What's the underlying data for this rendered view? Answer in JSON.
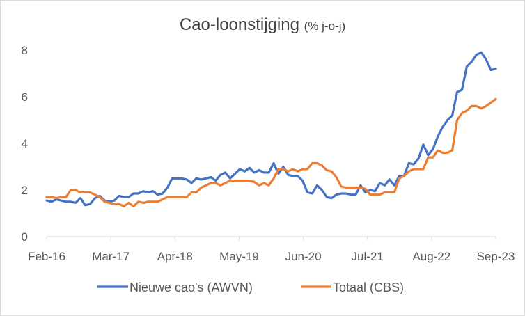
{
  "chart_data": {
    "type": "line",
    "title": "Cao-loonstijging",
    "title_suffix": "(% j-o-j)",
    "xlabel": "",
    "ylabel": "",
    "ylim": [
      0,
      8
    ],
    "yticks": [
      "0",
      "2",
      "4",
      "6",
      "8"
    ],
    "xtick_labels": [
      "Feb-16",
      "Mar-17",
      "Apr-18",
      "May-19",
      "Jun-20",
      "Jul-21",
      "Aug-22",
      "Sep-23"
    ],
    "grid": false,
    "legend_position": "bottom",
    "x_unit": "month index from Feb-16",
    "series": [
      {
        "name": "Nieuwe cao's (AWVN)",
        "color": "#4472C4",
        "values": [
          [
            0,
            1.55
          ],
          [
            1,
            1.5
          ],
          [
            2,
            1.6
          ],
          [
            3,
            1.55
          ],
          [
            4,
            1.5
          ],
          [
            5,
            1.5
          ],
          [
            6,
            1.45
          ],
          [
            7,
            1.65
          ],
          [
            8,
            1.35
          ],
          [
            9,
            1.4
          ],
          [
            10,
            1.65
          ],
          [
            11,
            1.75
          ],
          [
            12,
            1.55
          ],
          [
            13,
            1.5
          ],
          [
            14,
            1.55
          ],
          [
            15,
            1.75
          ],
          [
            16,
            1.7
          ],
          [
            17,
            1.7
          ],
          [
            18,
            1.85
          ],
          [
            19,
            1.85
          ],
          [
            20,
            1.95
          ],
          [
            21,
            1.9
          ],
          [
            22,
            1.95
          ],
          [
            23,
            1.8
          ],
          [
            24,
            1.85
          ],
          [
            25,
            2.1
          ],
          [
            26,
            2.5
          ],
          [
            27,
            2.5
          ],
          [
            28,
            2.5
          ],
          [
            29,
            2.45
          ],
          [
            30,
            2.3
          ],
          [
            31,
            2.5
          ],
          [
            32,
            2.45
          ],
          [
            33,
            2.5
          ],
          [
            34,
            2.55
          ],
          [
            35,
            2.4
          ],
          [
            36,
            2.65
          ],
          [
            37,
            2.75
          ],
          [
            38,
            2.5
          ],
          [
            39,
            2.7
          ],
          [
            40,
            2.9
          ],
          [
            41,
            2.8
          ],
          [
            42,
            2.95
          ],
          [
            43,
            2.75
          ],
          [
            44,
            2.85
          ],
          [
            45,
            2.75
          ],
          [
            46,
            2.75
          ],
          [
            47,
            3.15
          ],
          [
            48,
            2.7
          ],
          [
            49,
            3.0
          ],
          [
            50,
            2.65
          ],
          [
            51,
            2.6
          ],
          [
            52,
            2.6
          ],
          [
            53,
            2.4
          ],
          [
            54,
            1.9
          ],
          [
            55,
            1.85
          ],
          [
            56,
            2.2
          ],
          [
            57,
            2.0
          ],
          [
            58,
            1.7
          ],
          [
            59,
            1.65
          ],
          [
            60,
            1.8
          ],
          [
            61,
            1.85
          ],
          [
            62,
            1.85
          ],
          [
            63,
            1.8
          ],
          [
            64,
            1.8
          ],
          [
            65,
            2.2
          ],
          [
            66,
            1.9
          ],
          [
            67,
            2.0
          ],
          [
            68,
            1.95
          ],
          [
            69,
            2.3
          ],
          [
            70,
            2.2
          ],
          [
            71,
            2.45
          ],
          [
            72,
            2.2
          ],
          [
            73,
            2.6
          ],
          [
            74,
            2.6
          ],
          [
            75,
            3.15
          ],
          [
            76,
            3.1
          ],
          [
            77,
            3.35
          ],
          [
            78,
            3.95
          ],
          [
            79,
            3.5
          ],
          [
            80,
            3.75
          ],
          [
            81,
            4.3
          ],
          [
            82,
            4.7
          ],
          [
            83,
            5.0
          ],
          [
            84,
            5.2
          ],
          [
            85,
            6.2
          ],
          [
            86,
            6.3
          ],
          [
            87,
            7.3
          ],
          [
            88,
            7.5
          ],
          [
            89,
            7.8
          ],
          [
            90,
            7.9
          ],
          [
            91,
            7.6
          ],
          [
            92,
            7.15
          ],
          [
            93,
            7.2
          ]
        ]
      },
      {
        "name": "Totaal (CBS)",
        "color": "#ED7D31",
        "values": [
          [
            0,
            1.7
          ],
          [
            1,
            1.7
          ],
          [
            2,
            1.65
          ],
          [
            3,
            1.7
          ],
          [
            4,
            1.7
          ],
          [
            5,
            2.0
          ],
          [
            6,
            2.0
          ],
          [
            7,
            1.9
          ],
          [
            8,
            1.9
          ],
          [
            9,
            1.9
          ],
          [
            10,
            1.8
          ],
          [
            11,
            1.7
          ],
          [
            12,
            1.5
          ],
          [
            13,
            1.45
          ],
          [
            14,
            1.4
          ],
          [
            15,
            1.4
          ],
          [
            16,
            1.3
          ],
          [
            17,
            1.45
          ],
          [
            18,
            1.3
          ],
          [
            19,
            1.5
          ],
          [
            20,
            1.45
          ],
          [
            21,
            1.5
          ],
          [
            22,
            1.5
          ],
          [
            23,
            1.5
          ],
          [
            24,
            1.6
          ],
          [
            25,
            1.7
          ],
          [
            26,
            1.7
          ],
          [
            27,
            1.7
          ],
          [
            28,
            1.7
          ],
          [
            29,
            1.7
          ],
          [
            30,
            1.9
          ],
          [
            31,
            1.9
          ],
          [
            32,
            2.1
          ],
          [
            33,
            2.2
          ],
          [
            34,
            2.3
          ],
          [
            35,
            2.3
          ],
          [
            36,
            2.2
          ],
          [
            37,
            2.3
          ],
          [
            38,
            2.4
          ],
          [
            39,
            2.4
          ],
          [
            40,
            2.4
          ],
          [
            41,
            2.4
          ],
          [
            42,
            2.4
          ],
          [
            43,
            2.35
          ],
          [
            44,
            2.2
          ],
          [
            45,
            2.3
          ],
          [
            46,
            2.2
          ],
          [
            47,
            2.5
          ],
          [
            48,
            2.9
          ],
          [
            49,
            2.9
          ],
          [
            50,
            2.8
          ],
          [
            51,
            2.9
          ],
          [
            52,
            2.8
          ],
          [
            53,
            2.9
          ],
          [
            54,
            2.9
          ],
          [
            55,
            3.15
          ],
          [
            56,
            3.15
          ],
          [
            57,
            3.05
          ],
          [
            58,
            2.85
          ],
          [
            59,
            2.8
          ],
          [
            60,
            2.55
          ],
          [
            61,
            2.15
          ],
          [
            62,
            2.1
          ],
          [
            63,
            2.1
          ],
          [
            64,
            2.1
          ],
          [
            65,
            2.1
          ],
          [
            66,
            2.05
          ],
          [
            67,
            1.8
          ],
          [
            68,
            1.8
          ],
          [
            69,
            1.8
          ],
          [
            70,
            1.9
          ],
          [
            71,
            1.9
          ],
          [
            72,
            1.9
          ],
          [
            73,
            2.5
          ],
          [
            74,
            2.6
          ],
          [
            75,
            2.8
          ],
          [
            76,
            2.9
          ],
          [
            77,
            2.9
          ],
          [
            78,
            2.9
          ],
          [
            79,
            3.4
          ],
          [
            80,
            3.4
          ],
          [
            81,
            3.7
          ],
          [
            82,
            3.6
          ],
          [
            83,
            3.6
          ],
          [
            84,
            3.7
          ],
          [
            85,
            5.0
          ],
          [
            86,
            5.3
          ],
          [
            87,
            5.4
          ],
          [
            88,
            5.6
          ],
          [
            89,
            5.6
          ],
          [
            90,
            5.5
          ],
          [
            91,
            5.6
          ],
          [
            92,
            5.75
          ],
          [
            93,
            5.9
          ]
        ]
      }
    ]
  }
}
